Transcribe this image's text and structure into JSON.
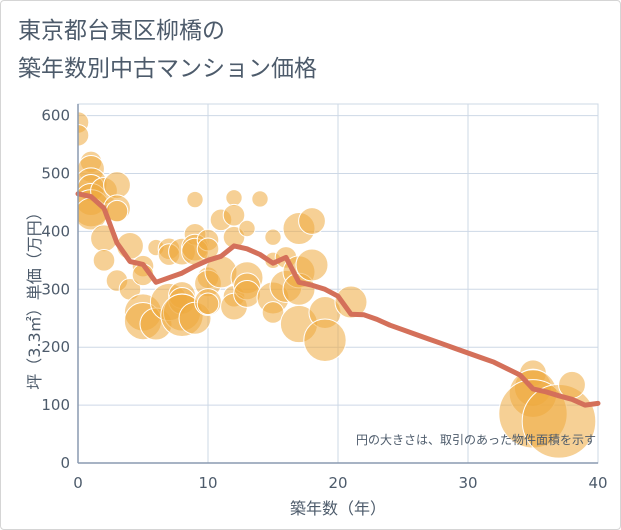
{
  "title_line1": "東京都台東区柳橋の",
  "title_line2": "築年数別中古マンション価格",
  "chart_data": {
    "type": "scatter",
    "title": "東京都台東区柳橋の築年数別中古マンション価格",
    "xlabel": "築年数（年）",
    "ylabel": "坪（3.3㎡）単価（万円）",
    "xlim": [
      0,
      40
    ],
    "ylim": [
      0,
      620
    ],
    "xticks": [
      0,
      10,
      20,
      30,
      40
    ],
    "yticks": [
      0,
      100,
      200,
      300,
      400,
      500,
      600
    ],
    "grid": true,
    "annotation": "円の大きさは、取引のあった物件面積を示す",
    "colors": {
      "bubble": "#eeaa3e",
      "line": "#d4705a",
      "grid": "#cdd8e6",
      "axis": "#8a9ab0"
    },
    "bubbles": [
      {
        "x": 0,
        "y": 588,
        "s": 3
      },
      {
        "x": 0,
        "y": 566,
        "s": 3
      },
      {
        "x": 1,
        "y": 520,
        "s": 3
      },
      {
        "x": 1,
        "y": 508,
        "s": 4
      },
      {
        "x": 1,
        "y": 482,
        "s": 5
      },
      {
        "x": 1,
        "y": 475,
        "s": 4
      },
      {
        "x": 1,
        "y": 455,
        "s": 5
      },
      {
        "x": 1,
        "y": 440,
        "s": 6
      },
      {
        "x": 1,
        "y": 430,
        "s": 5
      },
      {
        "x": 2,
        "y": 470,
        "s": 4
      },
      {
        "x": 2,
        "y": 388,
        "s": 4
      },
      {
        "x": 2,
        "y": 350,
        "s": 3
      },
      {
        "x": 3,
        "y": 480,
        "s": 4
      },
      {
        "x": 3,
        "y": 440,
        "s": 4
      },
      {
        "x": 3,
        "y": 435,
        "s": 3
      },
      {
        "x": 3,
        "y": 315,
        "s": 3
      },
      {
        "x": 4,
        "y": 375,
        "s": 4
      },
      {
        "x": 4,
        "y": 300,
        "s": 3
      },
      {
        "x": 5,
        "y": 340,
        "s": 3
      },
      {
        "x": 5,
        "y": 325,
        "s": 3
      },
      {
        "x": 5,
        "y": 260,
        "s": 6
      },
      {
        "x": 5,
        "y": 245,
        "s": 6
      },
      {
        "x": 6,
        "y": 372,
        "s": 2
      },
      {
        "x": 6,
        "y": 240,
        "s": 5
      },
      {
        "x": 7,
        "y": 370,
        "s": 3
      },
      {
        "x": 7,
        "y": 360,
        "s": 3
      },
      {
        "x": 7,
        "y": 278,
        "s": 6
      },
      {
        "x": 8,
        "y": 365,
        "s": 4
      },
      {
        "x": 8,
        "y": 290,
        "s": 4
      },
      {
        "x": 8,
        "y": 280,
        "s": 4
      },
      {
        "x": 8,
        "y": 260,
        "s": 6
      },
      {
        "x": 8,
        "y": 255,
        "s": 7
      },
      {
        "x": 9,
        "y": 455,
        "s": 2
      },
      {
        "x": 9,
        "y": 395,
        "s": 3
      },
      {
        "x": 9,
        "y": 372,
        "s": 4
      },
      {
        "x": 9,
        "y": 365,
        "s": 4
      },
      {
        "x": 9,
        "y": 250,
        "s": 5
      },
      {
        "x": 10,
        "y": 385,
        "s": 3
      },
      {
        "x": 10,
        "y": 370,
        "s": 3
      },
      {
        "x": 10,
        "y": 320,
        "s": 3
      },
      {
        "x": 10,
        "y": 310,
        "s": 4
      },
      {
        "x": 10,
        "y": 278,
        "s": 4
      },
      {
        "x": 10,
        "y": 275,
        "s": 3
      },
      {
        "x": 11,
        "y": 420,
        "s": 3
      },
      {
        "x": 11,
        "y": 330,
        "s": 5
      },
      {
        "x": 12,
        "y": 458,
        "s": 2
      },
      {
        "x": 12,
        "y": 428,
        "s": 3
      },
      {
        "x": 12,
        "y": 390,
        "s": 3
      },
      {
        "x": 12,
        "y": 288,
        "s": 3
      },
      {
        "x": 12,
        "y": 270,
        "s": 4
      },
      {
        "x": 13,
        "y": 405,
        "s": 2
      },
      {
        "x": 13,
        "y": 320,
        "s": 5
      },
      {
        "x": 13,
        "y": 305,
        "s": 4
      },
      {
        "x": 13,
        "y": 292,
        "s": 4
      },
      {
        "x": 14,
        "y": 456,
        "s": 2
      },
      {
        "x": 15,
        "y": 390,
        "s": 2
      },
      {
        "x": 15,
        "y": 350,
        "s": 2
      },
      {
        "x": 15,
        "y": 285,
        "s": 5
      },
      {
        "x": 15,
        "y": 260,
        "s": 3
      },
      {
        "x": 16,
        "y": 355,
        "s": 3
      },
      {
        "x": 16,
        "y": 305,
        "s": 5
      },
      {
        "x": 17,
        "y": 405,
        "s": 5
      },
      {
        "x": 17,
        "y": 330,
        "s": 5
      },
      {
        "x": 17,
        "y": 300,
        "s": 5
      },
      {
        "x": 17,
        "y": 240,
        "s": 6
      },
      {
        "x": 18,
        "y": 418,
        "s": 4
      },
      {
        "x": 18,
        "y": 342,
        "s": 5
      },
      {
        "x": 19,
        "y": 260,
        "s": 5
      },
      {
        "x": 19,
        "y": 212,
        "s": 7
      },
      {
        "x": 21,
        "y": 278,
        "s": 5
      },
      {
        "x": 35,
        "y": 155,
        "s": 4
      },
      {
        "x": 35,
        "y": 130,
        "s": 6
      },
      {
        "x": 35,
        "y": 120,
        "s": 8
      },
      {
        "x": 35,
        "y": 85,
        "s": 12
      },
      {
        "x": 37,
        "y": 72,
        "s": 13
      },
      {
        "x": 38,
        "y": 135,
        "s": 4
      }
    ],
    "line": {
      "x": [
        0,
        1,
        2,
        3,
        4,
        5,
        6,
        7,
        8,
        9,
        10,
        11,
        12,
        13,
        14,
        15,
        16,
        17,
        18,
        19,
        20,
        21,
        22,
        23,
        24,
        25,
        26,
        27,
        28,
        29,
        30,
        31,
        32,
        33,
        34,
        35,
        36,
        37,
        38,
        39,
        40
      ],
      "y": [
        465,
        460,
        440,
        380,
        348,
        343,
        312,
        320,
        328,
        340,
        350,
        357,
        375,
        370,
        360,
        345,
        355,
        312,
        307,
        300,
        288,
        257,
        256,
        248,
        238,
        230,
        222,
        214,
        206,
        198,
        190,
        182,
        174,
        163,
        152,
        128,
        123,
        116,
        110,
        100,
        103
      ]
    }
  }
}
